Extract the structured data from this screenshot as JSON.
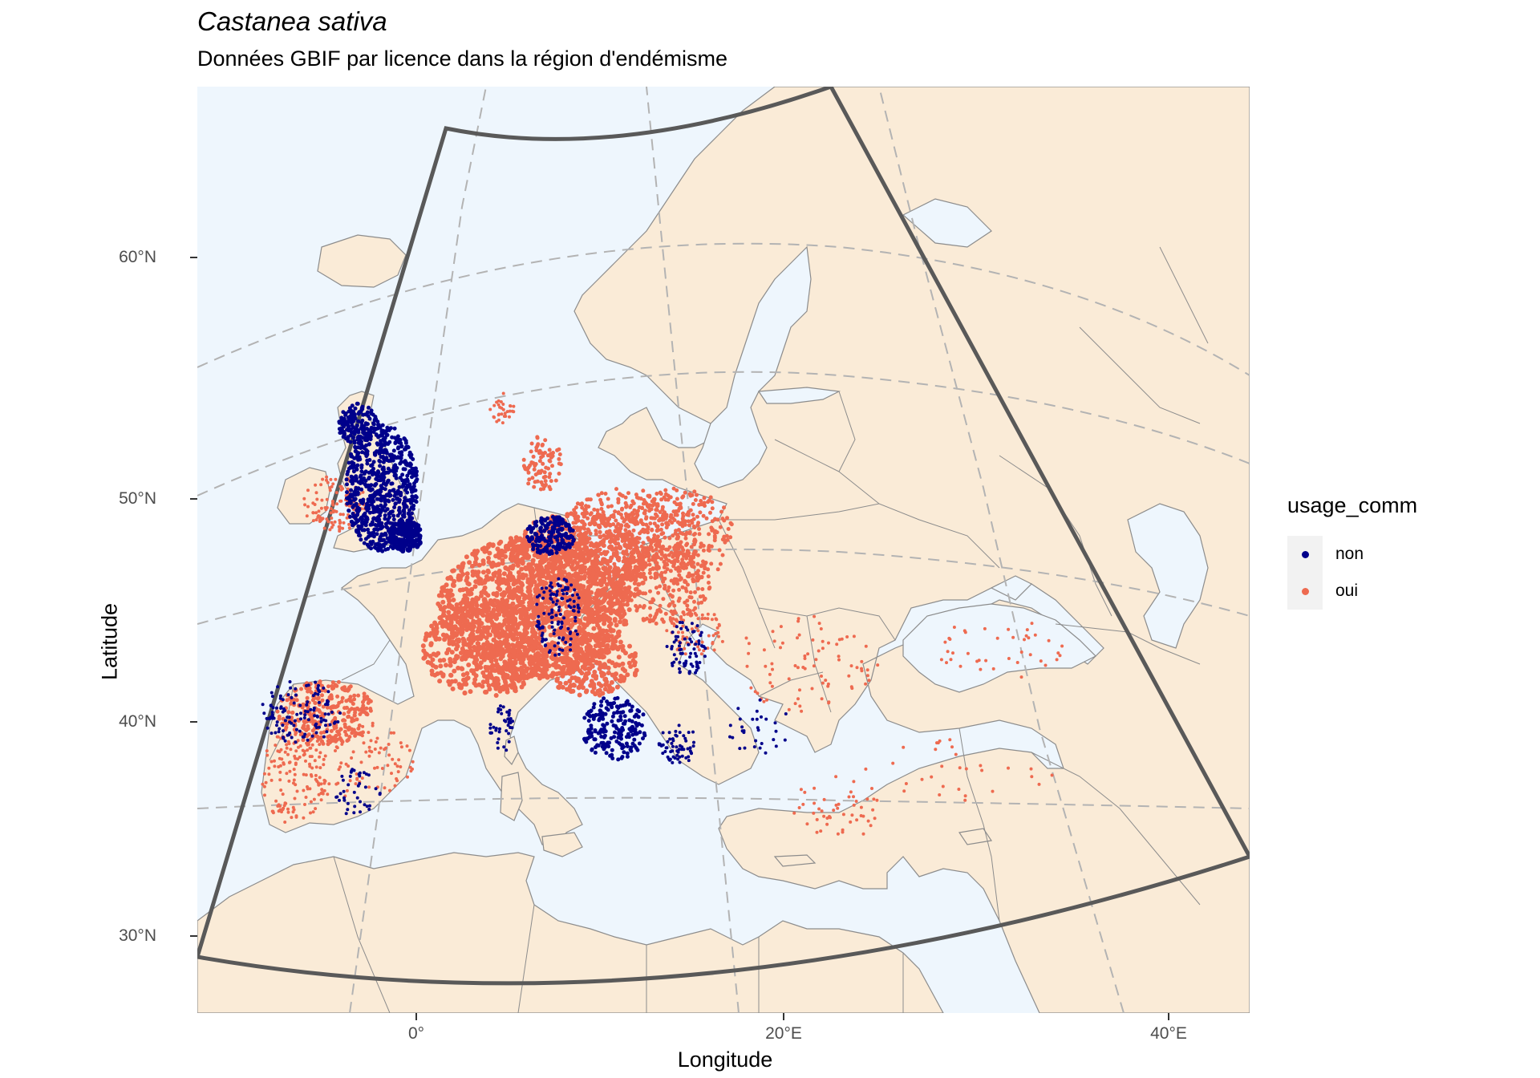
{
  "title": "Castanea sativa",
  "subtitle": "Données GBIF par licence dans la région d'endémisme",
  "axes": {
    "x_label": "Longitude",
    "y_label": "Latitude",
    "x_ticks": [
      "0°",
      "20°E",
      "40°E"
    ],
    "y_ticks": [
      "30°N",
      "40°N",
      "50°N",
      "60°N"
    ]
  },
  "legend": {
    "title": "usage_comm",
    "items": [
      {
        "label": "non",
        "color": "#00008b"
      },
      {
        "label": "oui",
        "color": "#ee6a50"
      }
    ]
  },
  "colors": {
    "sea": "#eef6fd",
    "land": "#faebd7",
    "border": "#8c8c8c",
    "graticule": "#b3b3b3",
    "region_outline": "#595959"
  },
  "map": {
    "projection": "conic",
    "extent": {
      "lon": [
        -12,
        45
      ],
      "lat": [
        27,
        72
      ]
    }
  }
}
